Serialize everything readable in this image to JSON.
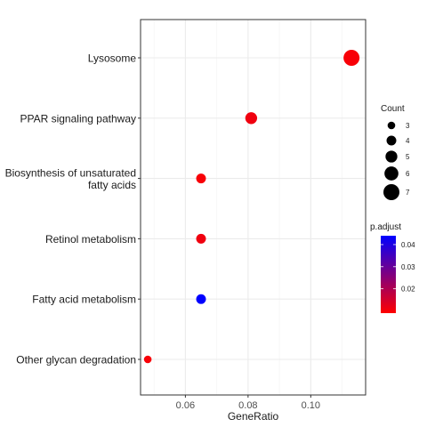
{
  "chart_data": {
    "type": "scatter",
    "xlabel": "GeneRatio",
    "ylabel": "",
    "xlim": [
      0.0457,
      0.1175
    ],
    "xticks": [
      0.06,
      0.08,
      0.1
    ],
    "xtick_labels": [
      "0.06",
      "0.08",
      "0.10"
    ],
    "grid": true,
    "categories": [
      "Lysosome",
      "PPAR signaling pathway",
      "Biosynthesis of unsaturated fatty acids",
      "Retinol metabolism",
      "Fatty acid metabolism",
      "Other glycan degradation"
    ],
    "category_labels": [
      [
        "Lysosome"
      ],
      [
        "PPAR signaling pathway"
      ],
      [
        "Biosynthesis of unsaturated",
        "fatty acids"
      ],
      [
        "Retinol metabolism"
      ],
      [
        "Fatty acid metabolism"
      ],
      [
        "Other glycan degradation"
      ]
    ],
    "points": [
      {
        "term": "Lysosome",
        "gene_ratio": 0.113,
        "count": 7,
        "p_adjust": 0.01
      },
      {
        "term": "PPAR signaling pathway",
        "gene_ratio": 0.081,
        "count": 5,
        "p_adjust": 0.011
      },
      {
        "term": "Biosynthesis of unsaturated fatty acids",
        "gene_ratio": 0.065,
        "count": 4,
        "p_adjust": 0.01
      },
      {
        "term": "Retinol metabolism",
        "gene_ratio": 0.065,
        "count": 4,
        "p_adjust": 0.011
      },
      {
        "term": "Fatty acid metabolism",
        "gene_ratio": 0.065,
        "count": 4,
        "p_adjust": 0.044
      },
      {
        "term": "Other glycan degradation",
        "gene_ratio": 0.048,
        "count": 3,
        "p_adjust": 0.01
      }
    ],
    "legend_size": {
      "title": "Count",
      "values": [
        3,
        4,
        5,
        6,
        7
      ]
    },
    "legend_color": {
      "title": "p.adjust",
      "range": [
        0.009,
        0.044
      ],
      "ticks": [
        0.02,
        0.03,
        0.04
      ],
      "tick_labels": [
        "0.02",
        "0.03",
        "0.04"
      ],
      "low_color": "#ff0000",
      "high_color": "#0000ff"
    },
    "legend_placement": "right"
  }
}
